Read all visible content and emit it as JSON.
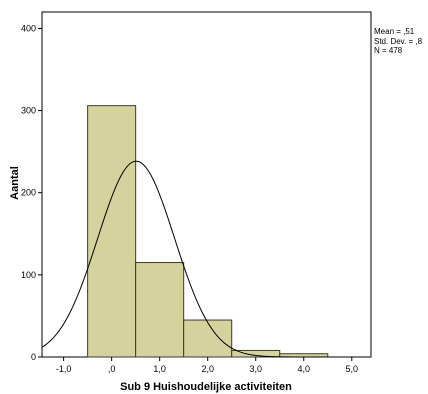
{
  "chart_data": {
    "type": "bar",
    "xlabel": "Sub 9 Huishoudelijke activiteiten",
    "ylabel": "Aantal",
    "bins": [
      {
        "start": -0.5,
        "end": 0.5,
        "count": 306
      },
      {
        "start": 0.5,
        "end": 1.5,
        "count": 115
      },
      {
        "start": 1.5,
        "end": 2.5,
        "count": 45
      },
      {
        "start": 2.5,
        "end": 3.5,
        "count": 8
      },
      {
        "start": 3.5,
        "end": 4.5,
        "count": 4
      }
    ],
    "xlim": [
      -1.45,
      5.4
    ],
    "ylim": [
      0,
      420
    ],
    "x_ticks": [
      -1.0,
      0.0,
      1.0,
      2.0,
      3.0,
      4.0,
      5.0
    ],
    "x_tick_labels": [
      "-1,0",
      ",0",
      "1,0",
      "2,0",
      "3,0",
      "4,0",
      "5,0"
    ],
    "y_ticks": [
      0,
      100,
      200,
      300,
      400
    ],
    "y_tick_labels": [
      "0",
      "100",
      "200",
      "300",
      "400"
    ],
    "normal_curve": {
      "mean": 0.51,
      "std_dev": 0.8,
      "n": 478,
      "bin_width": 1
    },
    "stats": {
      "mean": "Mean = ,51",
      "std_dev": "Std. Dev. = ,8",
      "n": "N = 478"
    },
    "colors": {
      "bar_fill": "#d5d29e",
      "bar_stroke": "#3a3a3a",
      "curve": "#000000",
      "frame": "#000000"
    }
  }
}
